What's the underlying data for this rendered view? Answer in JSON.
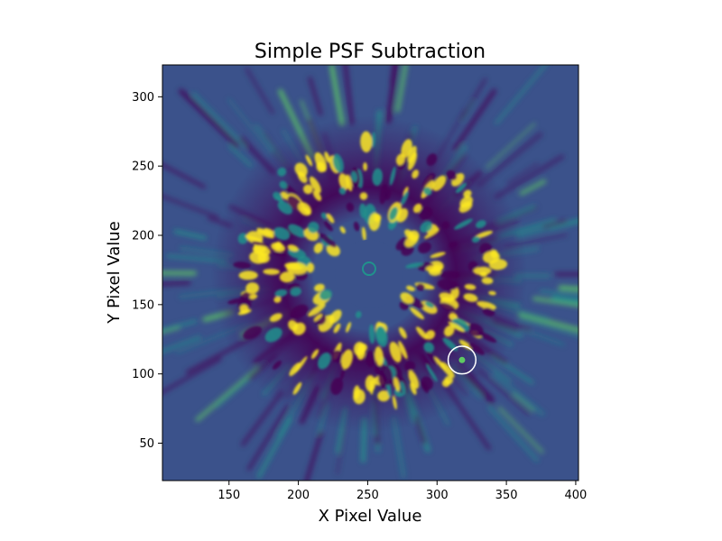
{
  "chart_data": {
    "type": "heatmap",
    "title": "Simple PSF Subtraction",
    "xlabel": "X Pixel Value",
    "ylabel": "Y Pixel Value",
    "xlim": [
      102,
      402
    ],
    "ylim": [
      23,
      323
    ],
    "x_ticks": [
      150,
      200,
      250,
      300,
      350,
      400
    ],
    "y_ticks": [
      50,
      100,
      150,
      200,
      250,
      300
    ],
    "colormap": "viridis",
    "colors": {
      "low": "#440154",
      "background": "#3b528b",
      "mid": "#21918c",
      "high": "#5ec962",
      "saturated": "#fde725",
      "marker": "#ffffff"
    },
    "image_center": [
      251,
      172
    ],
    "annotations": [
      {
        "type": "circle",
        "x": 318,
        "y": 110,
        "radius": 10,
        "color": "#ffffff"
      }
    ]
  }
}
